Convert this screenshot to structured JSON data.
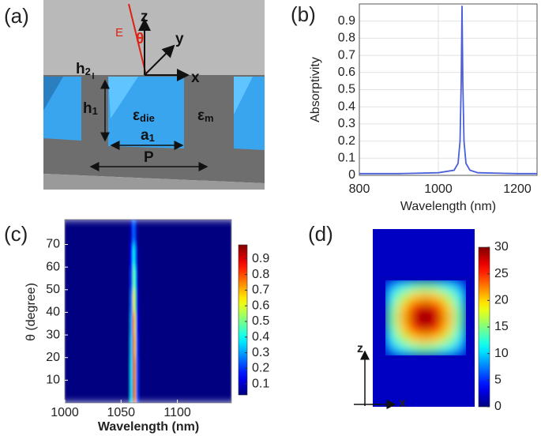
{
  "diagram": {
    "panel_label": "(a)",
    "axis_z": "z",
    "axis_y": "y",
    "axis_x": "x",
    "field": "E",
    "angle": "θ",
    "h2": {
      "base": "h",
      "sub": "2"
    },
    "h1": {
      "base": "h",
      "sub": "1"
    },
    "eps_die": {
      "base": "ε",
      "sub": "die"
    },
    "eps_m": {
      "base": "ε",
      "sub": "m"
    },
    "a1": {
      "base": "a",
      "sub": "1"
    },
    "period": "P"
  },
  "chart_data": [
    {
      "panel_label": "(b)",
      "type": "line",
      "xlabel": "Wavelength (nm)",
      "ylabel": "Absorptivity",
      "x": [
        800,
        900,
        1000,
        1040,
        1050,
        1055,
        1058,
        1060,
        1062,
        1065,
        1070,
        1080,
        1100,
        1200,
        1250
      ],
      "values": [
        0.01,
        0.01,
        0.015,
        0.03,
        0.07,
        0.2,
        0.55,
        0.99,
        0.55,
        0.2,
        0.07,
        0.03,
        0.015,
        0.01,
        0.01
      ],
      "color": "#4a5fd8",
      "xlim": [
        800,
        1250
      ],
      "ylim": [
        0,
        1
      ],
      "xticks": [
        800,
        1000,
        1200
      ],
      "yticks": [
        0,
        0.1,
        0.2,
        0.3,
        0.4,
        0.5,
        0.6,
        0.7,
        0.8,
        0.9
      ],
      "grid": true
    },
    {
      "panel_label": "(c)",
      "type": "heatmap",
      "xlabel": "Wavelength (nm)",
      "ylabel": "θ (degree)",
      "xlim": [
        1000,
        1148
      ],
      "ylim": [
        0,
        81
      ],
      "xticks": [
        1000,
        1050,
        1100
      ],
      "yticks": [
        10,
        20,
        30,
        40,
        50,
        60,
        70
      ],
      "xbins": [
        1000,
        1058,
        1060.5,
        1062,
        1063.5,
        1066,
        1148
      ],
      "ybins": [
        0,
        10,
        20,
        30,
        40,
        50,
        60,
        70,
        81
      ],
      "values": [
        [
          0.03,
          0.35,
          0.95,
          0.7,
          0.2,
          0.03
        ],
        [
          0.03,
          0.35,
          0.93,
          0.7,
          0.2,
          0.03
        ],
        [
          0.03,
          0.33,
          0.9,
          0.65,
          0.18,
          0.03
        ],
        [
          0.03,
          0.3,
          0.8,
          0.6,
          0.15,
          0.03
        ],
        [
          0.03,
          0.25,
          0.65,
          0.5,
          0.12,
          0.03
        ],
        [
          0.03,
          0.2,
          0.5,
          0.4,
          0.1,
          0.03
        ],
        [
          0.03,
          0.15,
          0.4,
          0.3,
          0.08,
          0.03
        ],
        [
          0.03,
          0.1,
          0.25,
          0.2,
          0.05,
          0.03
        ]
      ],
      "colormap": "jet",
      "clim": [
        0.03,
        0.99
      ],
      "cticks": [
        0.1,
        0.2,
        0.3,
        0.4,
        0.5,
        0.6,
        0.7,
        0.8,
        0.9
      ]
    },
    {
      "panel_label": "(d)",
      "type": "heatmap",
      "axis_x": "x",
      "axis_z": "z",
      "background": 2,
      "values": [
        [
          8,
          11,
          13,
          14,
          13,
          11,
          8
        ],
        [
          11,
          16,
          20,
          21,
          20,
          16,
          11
        ],
        [
          13,
          20,
          26,
          28,
          26,
          20,
          13
        ],
        [
          14,
          21,
          28,
          30,
          28,
          21,
          14
        ],
        [
          13,
          20,
          26,
          28,
          26,
          20,
          13
        ],
        [
          11,
          16,
          20,
          21,
          20,
          16,
          11
        ],
        [
          8,
          11,
          13,
          14,
          13,
          11,
          8
        ]
      ],
      "colormap": "jet",
      "clim": [
        0,
        30
      ],
      "cticks": [
        0,
        5,
        10,
        15,
        20,
        25,
        30
      ]
    }
  ]
}
